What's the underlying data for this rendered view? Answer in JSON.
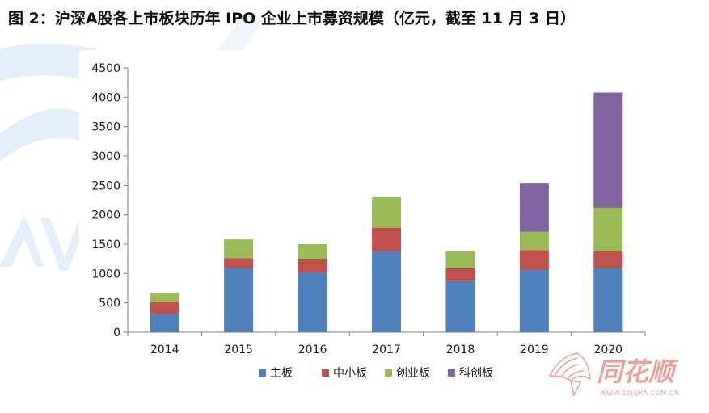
{
  "figure": {
    "title": "图 2：沪深A股各上市板块历年 IPO 企业上市募资规模（亿元，截至 11 月 3 日）"
  },
  "watermark": {
    "brand_text": "同花顺",
    "url_text": "WWW.10JQKA.COM.CN",
    "color": "#e7a29c",
    "bg_color": "#e3eff8"
  },
  "chart_data": {
    "type": "bar",
    "stacked": true,
    "title": "",
    "xlabel": "",
    "ylabel": "",
    "categories": [
      "2014",
      "2015",
      "2016",
      "2017",
      "2018",
      "2019",
      "2020"
    ],
    "ylim": [
      0,
      4500
    ],
    "yticks": [
      0,
      500,
      1000,
      1500,
      2000,
      2500,
      3000,
      3500,
      4000,
      4500
    ],
    "grid": false,
    "legend_position": "bottom",
    "series": [
      {
        "name": "主板",
        "color": "#4f81bd",
        "values": [
          310,
          1090,
          1020,
          1380,
          870,
          1060,
          1090
        ]
      },
      {
        "name": "中小板",
        "color": "#c0504d",
        "values": [
          200,
          170,
          220,
          400,
          220,
          340,
          290
        ]
      },
      {
        "name": "创业板",
        "color": "#9bbb59",
        "values": [
          160,
          320,
          260,
          520,
          290,
          310,
          740
        ]
      },
      {
        "name": "科创板",
        "color": "#8064a2",
        "values": [
          0,
          0,
          0,
          0,
          0,
          820,
          1960
        ]
      }
    ]
  }
}
